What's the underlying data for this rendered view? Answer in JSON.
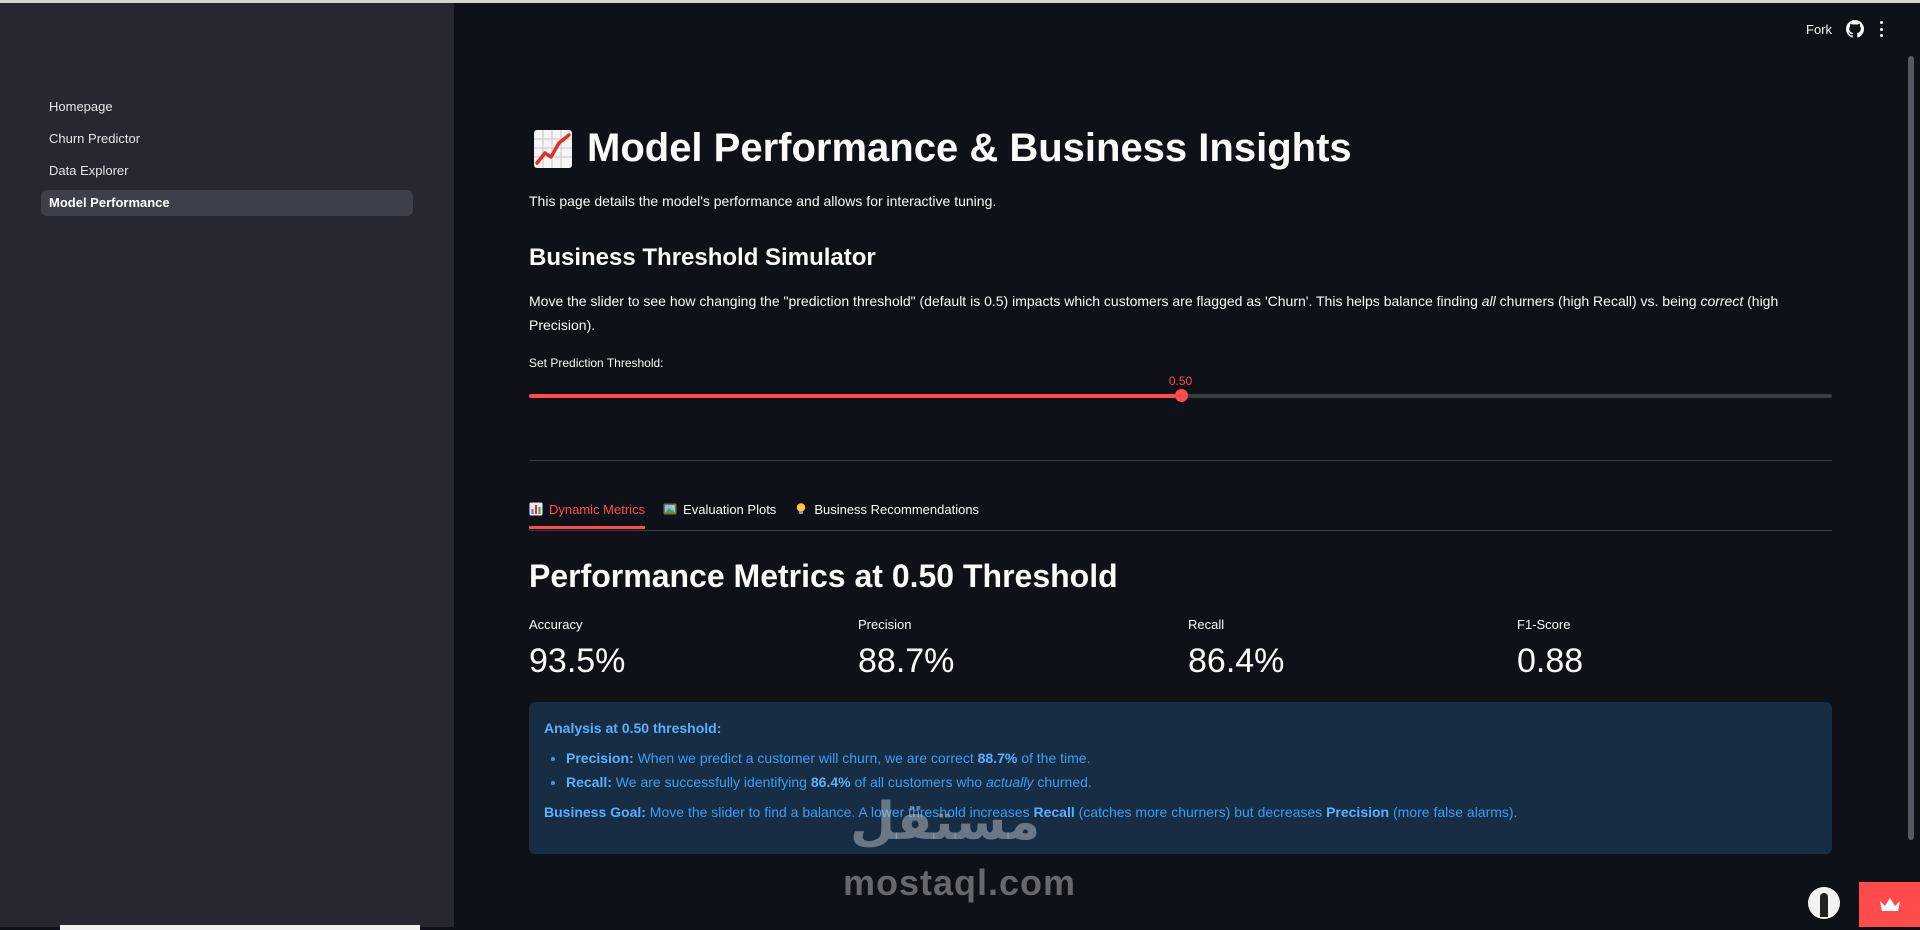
{
  "sidebar": {
    "items": [
      {
        "label": "Homepage",
        "active": false
      },
      {
        "label": "Churn Predictor",
        "active": false
      },
      {
        "label": "Data Explorer",
        "active": false
      },
      {
        "label": "Model Performance",
        "active": true
      }
    ]
  },
  "header": {
    "fork_label": "Fork",
    "github_icon": "github-icon",
    "menu_icon": "kebab-menu-icon"
  },
  "main": {
    "title": "Model Performance & Business Insights",
    "title_icon": "chart-increasing-emoji",
    "description": "This page details the model's performance and allows for interactive tuning.",
    "simulator": {
      "title": "Business Threshold Simulator",
      "desc_part1": "Move the slider to see how changing the \"prediction threshold\" (default is 0.5) impacts which customers are flagged as 'Churn'. This helps balance finding ",
      "desc_em1": "all",
      "desc_part2": " churners (high Recall) vs. being ",
      "desc_em2": "correct",
      "desc_part3": " (high Precision).",
      "slider_label": "Set Prediction Threshold:",
      "slider_value": 0.5,
      "slider_value_label": "0.50",
      "slider_accent": "#ff4b4b"
    },
    "tabs": [
      {
        "label": "Dynamic Metrics",
        "icon": "bar-chart-icon",
        "active": true
      },
      {
        "label": "Evaluation Plots",
        "icon": "picture-icon",
        "active": false
      },
      {
        "label": "Business Recommendations",
        "icon": "lightbulb-icon",
        "active": false
      }
    ],
    "metrics_title": "Performance Metrics at 0.50 Threshold",
    "metrics": [
      {
        "label": "Accuracy",
        "value": "93.5%"
      },
      {
        "label": "Precision",
        "value": "88.7%"
      },
      {
        "label": "Recall",
        "value": "86.4%"
      },
      {
        "label": "F1-Score",
        "value": "0.88"
      }
    ],
    "analysis": {
      "title": "Analysis at 0.50 threshold:",
      "precision_key": "Precision:",
      "precision_text1": " When we predict a customer will churn, we are correct ",
      "precision_value": "88.7%",
      "precision_text2": " of the time.",
      "recall_key": "Recall:",
      "recall_text1": " We are successfully identifying ",
      "recall_value": "86.4%",
      "recall_text2": " of all customers who ",
      "recall_em": "actually",
      "recall_text3": " churned.",
      "goal_key": "Business Goal:",
      "goal_text1": " Move the slider to find a balance. A lower threshold increases ",
      "goal_recall": "Recall",
      "goal_text2": " (catches more churners) but decreases ",
      "goal_precision": "Precision",
      "goal_text3": " (more false alarms)."
    }
  },
  "watermark": {
    "arabic": "مستقل",
    "latin": "mostaql.com"
  },
  "colors": {
    "accent": "#ff4b4b",
    "background": "#0e1117",
    "sidebar": "#262730",
    "info_bg": "#172d43",
    "info_text": "#3d9df3"
  }
}
